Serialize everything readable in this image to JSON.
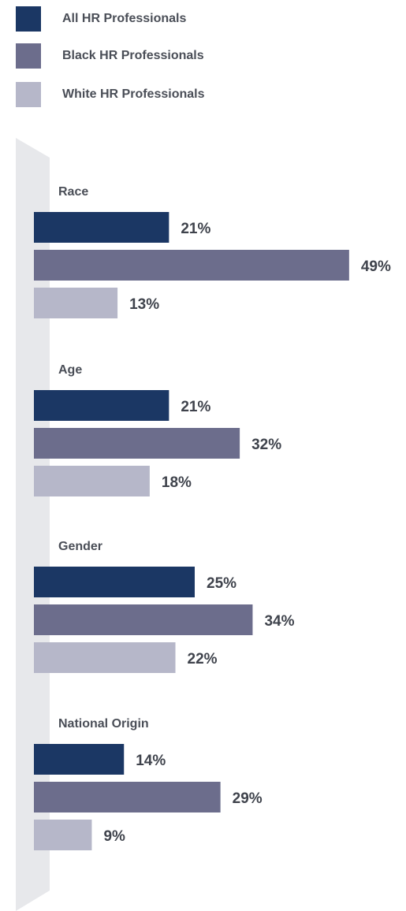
{
  "legend": [
    {
      "label": "All HR Professionals",
      "color": "#1b3764"
    },
    {
      "label": "Black HR Professionals",
      "color": "#6c6d8c"
    },
    {
      "label": "White HR Professionals",
      "color": "#b6b7c9"
    }
  ],
  "chart_data": {
    "type": "bar",
    "orientation": "horizontal",
    "categories": [
      "Race",
      "Age",
      "Gender",
      "National Origin"
    ],
    "series": [
      {
        "name": "All HR Professionals",
        "values": [
          21,
          21,
          25,
          14
        ],
        "color": "#1b3764"
      },
      {
        "name": "Black HR Professionals",
        "values": [
          49,
          32,
          34,
          29
        ],
        "color": "#6c6d8c"
      },
      {
        "name": "White HR Professionals",
        "values": [
          13,
          18,
          22,
          9
        ],
        "color": "#b6b7c9"
      }
    ],
    "value_suffix": "%",
    "xlim": [
      0,
      49
    ],
    "legend_position": "top-left",
    "grid": false
  }
}
